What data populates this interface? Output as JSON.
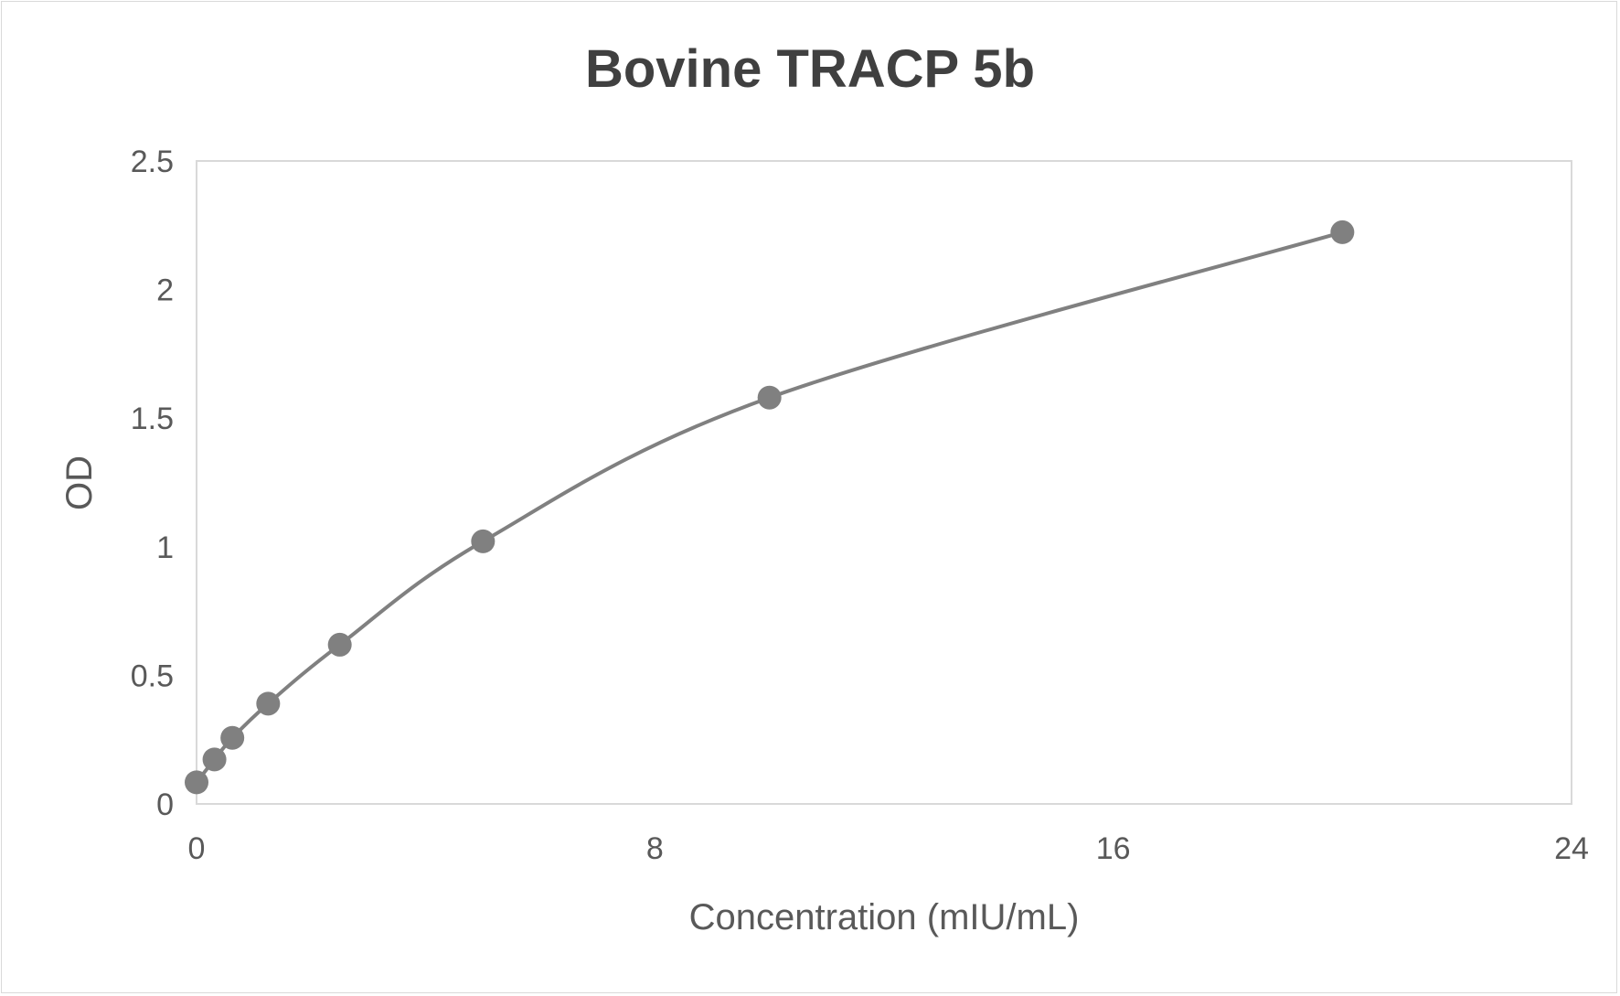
{
  "chart_data": {
    "type": "scatter",
    "title": "Bovine TRACP 5b",
    "xlabel": "Concentration (mIU/mL)",
    "ylabel": "OD",
    "xlim": [
      0,
      24
    ],
    "ylim": [
      0,
      2.5
    ],
    "xticks": [
      0,
      8,
      16,
      24
    ],
    "yticks": [
      0,
      0.5,
      1,
      1.5,
      2,
      2.5
    ],
    "xtick_labels": [
      "0",
      "8",
      "16",
      "24"
    ],
    "ytick_labels": [
      "0",
      "0.5",
      "1",
      "1.5",
      "2",
      "2.5"
    ],
    "grid": false,
    "smooth_line": true,
    "series": [
      {
        "x": [
          0,
          0.3125,
          0.625,
          1.25,
          2.5,
          5,
          10,
          20
        ],
        "y": [
          0.084,
          0.173,
          0.257,
          0.39,
          0.619,
          1.021,
          1.58,
          2.223
        ],
        "color": "#808080"
      }
    ],
    "colors": {
      "text": "#595959",
      "title": "#404040",
      "axis": "#d9d9d9"
    }
  }
}
